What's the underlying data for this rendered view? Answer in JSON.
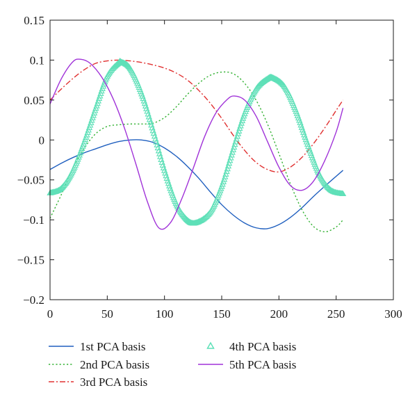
{
  "chart_data": {
    "type": "line",
    "title": "",
    "xlabel": "",
    "ylabel": "",
    "xlim": [
      0,
      300
    ],
    "ylim": [
      -0.2,
      0.15
    ],
    "xticks": [
      0,
      50,
      100,
      150,
      200,
      250,
      300
    ],
    "xtick_labels": [
      "0",
      "50",
      "100",
      "150",
      "200",
      "250",
      "300"
    ],
    "yticks": [
      0.15,
      0.1,
      0.05,
      0,
      -0.05,
      -0.1,
      -0.15,
      -0.2
    ],
    "ytick_labels": [
      "0.15",
      "0.1",
      "0.05",
      "0",
      "−0.05",
      "−0.1",
      "−0.15",
      "−0.2"
    ],
    "grid": false,
    "legend_position": "bottom",
    "series": [
      {
        "name": "1st PCA basis",
        "color": "#1f5fbf",
        "style": "solid",
        "marker": "none",
        "x": [
          0,
          10,
          20,
          30,
          40,
          50,
          60,
          70,
          80,
          90,
          100,
          110,
          120,
          130,
          140,
          150,
          160,
          170,
          180,
          190,
          200,
          210,
          220,
          230,
          240,
          256
        ],
        "y": [
          -0.037,
          -0.029,
          -0.022,
          -0.016,
          -0.011,
          -0.006,
          -0.002,
          0.0,
          0.0,
          -0.003,
          -0.01,
          -0.02,
          -0.033,
          -0.048,
          -0.065,
          -0.081,
          -0.094,
          -0.104,
          -0.11,
          -0.111,
          -0.106,
          -0.097,
          -0.085,
          -0.071,
          -0.058,
          -0.038
        ]
      },
      {
        "name": "2nd PCA basis",
        "color": "#33b233",
        "style": "dotted",
        "marker": "none",
        "x": [
          0,
          10,
          20,
          30,
          40,
          50,
          60,
          70,
          80,
          90,
          100,
          110,
          120,
          130,
          140,
          150,
          160,
          170,
          180,
          190,
          200,
          210,
          220,
          230,
          240,
          250,
          256
        ],
        "y": [
          -0.098,
          -0.068,
          -0.035,
          -0.01,
          0.008,
          0.017,
          0.019,
          0.02,
          0.02,
          0.021,
          0.028,
          0.041,
          0.057,
          0.071,
          0.081,
          0.085,
          0.083,
          0.071,
          0.05,
          0.02,
          -0.017,
          -0.055,
          -0.087,
          -0.108,
          -0.115,
          -0.109,
          -0.1
        ]
      },
      {
        "name": "3rd PCA basis",
        "color": "#e03030",
        "style": "dashdot",
        "marker": "none",
        "x": [
          0,
          10,
          20,
          30,
          40,
          50,
          60,
          70,
          80,
          90,
          100,
          110,
          120,
          130,
          140,
          150,
          160,
          170,
          180,
          190,
          200,
          210,
          220,
          230,
          240,
          250,
          256
        ],
        "y": [
          0.05,
          0.064,
          0.077,
          0.088,
          0.096,
          0.099,
          0.1,
          0.099,
          0.097,
          0.094,
          0.09,
          0.084,
          0.075,
          0.062,
          0.046,
          0.027,
          0.006,
          -0.013,
          -0.028,
          -0.037,
          -0.04,
          -0.034,
          -0.022,
          -0.005,
          0.015,
          0.037,
          0.05
        ]
      },
      {
        "name": "4th PCA basis",
        "color": "#5fe0b8",
        "style": "none",
        "marker": "triangle",
        "x": [
          0,
          10,
          20,
          30,
          40,
          50,
          60,
          62,
          70,
          80,
          90,
          100,
          110,
          120,
          128,
          140,
          150,
          160,
          170,
          180,
          190,
          195,
          205,
          215,
          225,
          235,
          245,
          256
        ],
        "y": [
          -0.066,
          -0.06,
          -0.038,
          -0.002,
          0.04,
          0.08,
          0.097,
          0.098,
          0.09,
          0.058,
          0.012,
          -0.038,
          -0.079,
          -0.1,
          -0.103,
          -0.09,
          -0.058,
          -0.012,
          0.033,
          0.064,
          0.077,
          0.078,
          0.067,
          0.036,
          -0.005,
          -0.042,
          -0.062,
          -0.067
        ]
      },
      {
        "name": "5th PCA basis",
        "color": "#a032d8",
        "style": "solid",
        "marker": "none",
        "x": [
          0,
          10,
          20,
          27,
          35,
          45,
          55,
          65,
          75,
          85,
          95,
          105,
          115,
          125,
          135,
          145,
          155,
          161,
          170,
          180,
          190,
          200,
          210,
          220,
          230,
          240,
          250,
          256
        ],
        "y": [
          0.045,
          0.077,
          0.098,
          0.101,
          0.096,
          0.079,
          0.052,
          0.015,
          -0.03,
          -0.077,
          -0.11,
          -0.104,
          -0.074,
          -0.036,
          0.004,
          0.034,
          0.051,
          0.055,
          0.05,
          0.03,
          -0.002,
          -0.034,
          -0.057,
          -0.063,
          -0.052,
          -0.026,
          0.01,
          0.04
        ]
      }
    ]
  }
}
